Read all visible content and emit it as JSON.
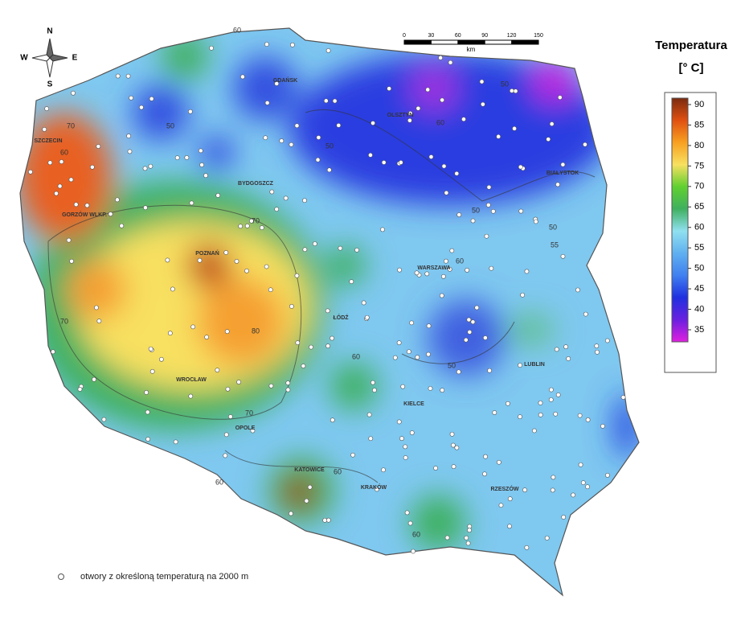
{
  "compass": {
    "n": "N",
    "w": "W",
    "e": "E",
    "s": "S"
  },
  "scale_bar": {
    "ticks": [
      0,
      30,
      60,
      90,
      120,
      150
    ],
    "unit": "km"
  },
  "legend": {
    "title": "Temperatura",
    "unit": "[° C]",
    "ticks": [
      35,
      40,
      45,
      50,
      55,
      60,
      65,
      70,
      75,
      80,
      85,
      90
    ],
    "colors": [
      "#e020e0",
      "#6a20e0",
      "#2030e0",
      "#4080f0",
      "#60b0f0",
      "#90e0f0",
      "#40b060",
      "#60d030",
      "#f8e060",
      "#f8a020",
      "#e05010",
      "#7a2a10"
    ]
  },
  "cities": [
    "GDAŃSK",
    "OLSZTYN",
    "BIAŁYSTOK",
    "SZCZECIN",
    "BYDGOSZCZ",
    "GORZÓW WLKP.",
    "POZNAŃ",
    "WARSZAWA",
    "ŁÓDŹ",
    "LUBLIN",
    "WROCŁAW",
    "KIELCE",
    "OPOLE",
    "KATOWICE",
    "KRAKÓW",
    "RZESZÓW"
  ],
  "contour_labels": [
    60,
    50,
    60,
    50,
    50,
    70,
    60,
    70,
    50,
    50,
    55,
    60,
    70,
    80,
    50,
    60,
    70,
    60,
    60,
    60
  ],
  "footer": {
    "legend_text": "otwory z określoną temperaturą na 2000 m"
  }
}
